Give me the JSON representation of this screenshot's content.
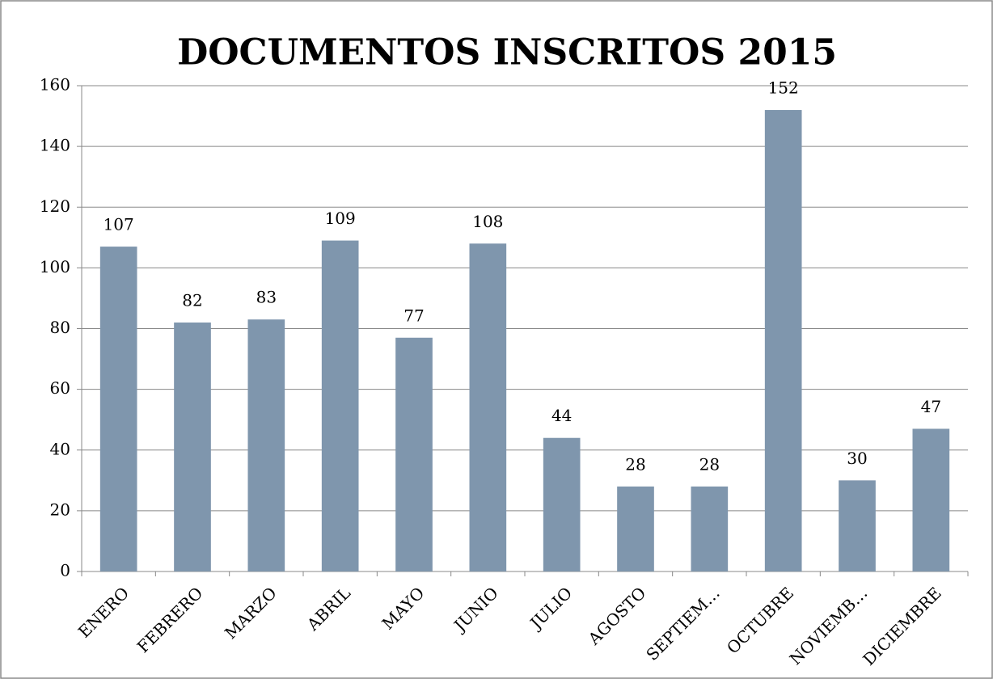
{
  "chart_data": {
    "type": "bar",
    "title": "DOCUMENTOS INSCRITOS 2015",
    "categories": [
      "ENERO",
      "FEBRERO",
      "MARZO",
      "ABRIL",
      "MAYO",
      "JUNIO",
      "JULIO",
      "AGOSTO",
      "SEPTIEM…",
      "OCTUBRE",
      "NOVIEMB…",
      "DICIEMBRE"
    ],
    "values": [
      107,
      82,
      83,
      109,
      77,
      108,
      44,
      28,
      28,
      152,
      30,
      47
    ],
    "color": "#7f96ad",
    "ylim": [
      0,
      160
    ],
    "yticks": [
      0,
      20,
      40,
      60,
      80,
      100,
      120,
      140,
      160
    ],
    "grid": true
  }
}
